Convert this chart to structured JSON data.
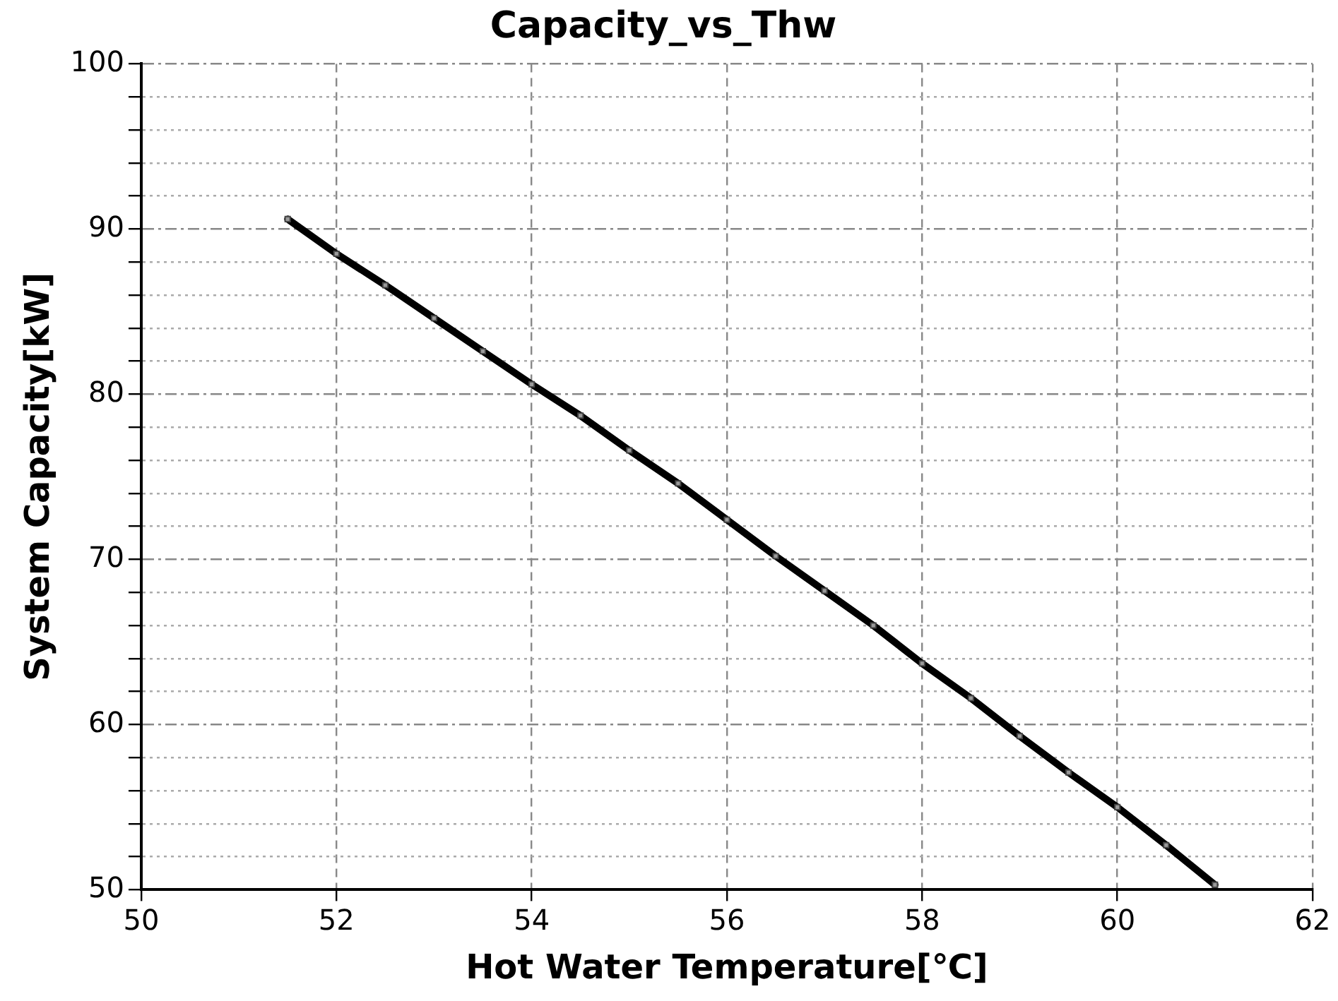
{
  "chart_data": {
    "type": "line",
    "title": "Capacity_vs_Thw",
    "xlabel": "Hot Water Temperature[℃]",
    "ylabel": "System Capacity[kW]",
    "x": [
      51.5,
      52,
      52.5,
      53,
      53.5,
      54,
      54.5,
      55,
      55.5,
      56,
      56.5,
      57,
      57.5,
      58,
      58.5,
      59,
      59.5,
      60,
      60.5,
      61
    ],
    "series": [
      {
        "color": "#000000",
        "values": [
          90.6,
          88.5,
          86.6,
          84.6,
          82.6,
          80.6,
          78.7,
          76.6,
          74.6,
          72.4,
          70.2,
          68.1,
          66.0,
          63.7,
          61.6,
          59.3,
          57.1,
          55.0,
          52.7,
          50.3
        ]
      }
    ],
    "xlim": [
      50,
      62
    ],
    "xticks": [
      50,
      52,
      54,
      56,
      58,
      60,
      62
    ],
    "ylim": [
      50,
      100
    ],
    "yticks": [
      50,
      {
        "value": 52,
        "label": null
      },
      {
        "value": 54,
        "label": null
      },
      {
        "value": 56,
        "label": null
      },
      {
        "value": 58,
        "label": null
      },
      60,
      {
        "value": 62,
        "label": null
      },
      {
        "value": 64,
        "label": null
      },
      {
        "value": 66,
        "label": null
      },
      {
        "value": 68,
        "label": null
      },
      70,
      {
        "value": 72,
        "label": null
      },
      {
        "value": 74,
        "label": null
      },
      {
        "value": 76,
        "label": null
      },
      {
        "value": 78,
        "label": null
      },
      80,
      {
        "value": 82,
        "label": null
      },
      {
        "value": 84,
        "label": null
      },
      {
        "value": 86,
        "label": null
      },
      {
        "value": 88,
        "label": null
      },
      90,
      {
        "value": 92,
        "label": null
      },
      {
        "value": 94,
        "label": null
      },
      {
        "value": 96,
        "label": null
      },
      {
        "value": 98,
        "label": null
      },
      100
    ],
    "grid": true,
    "marker": "square",
    "line_style": "solid",
    "legend": false
  }
}
